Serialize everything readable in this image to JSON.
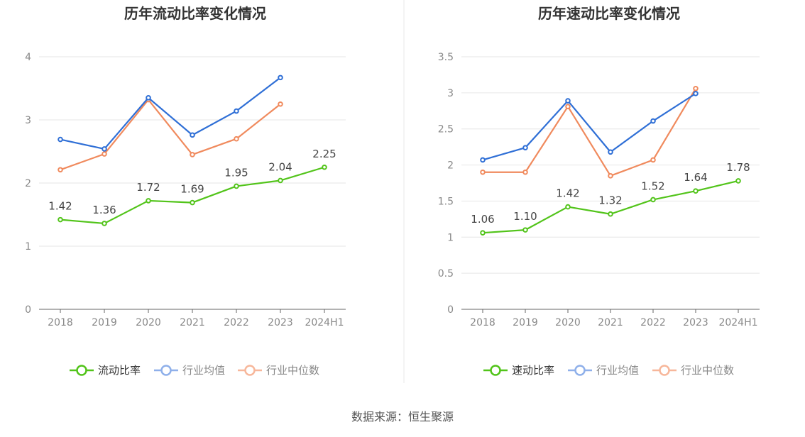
{
  "chart_data": [
    {
      "type": "line",
      "title": "历年流动比率变化情况",
      "categories": [
        "2018",
        "2019",
        "2020",
        "2021",
        "2022",
        "2023",
        "2024H1"
      ],
      "yticks": [
        "0",
        "1",
        "2",
        "3",
        "4"
      ],
      "ylim": [
        0,
        4
      ],
      "grid": true,
      "legend_position": "bottom",
      "series": [
        {
          "name": "流动比率",
          "color": "#52c41a",
          "values": [
            1.42,
            1.36,
            1.72,
            1.69,
            1.95,
            2.04,
            2.25
          ],
          "labels": [
            "1.42",
            "1.36",
            "1.72",
            "1.69",
            "1.95",
            "2.04",
            "2.25"
          ]
        },
        {
          "name": "行业均值",
          "color": "#2f6fd6",
          "values": [
            2.69,
            2.54,
            3.35,
            2.76,
            3.14,
            3.67,
            null
          ]
        },
        {
          "name": "行业中位数",
          "color": "#f08a5d",
          "values": [
            2.21,
            2.46,
            3.32,
            2.45,
            2.7,
            3.25,
            null
          ]
        }
      ]
    },
    {
      "type": "line",
      "title": "历年速动比率变化情况",
      "categories": [
        "2018",
        "2019",
        "2020",
        "2021",
        "2022",
        "2023",
        "2024H1"
      ],
      "yticks": [
        "0",
        "0.5",
        "1",
        "1.5",
        "2",
        "2.5",
        "3",
        "3.5"
      ],
      "ylim": [
        0,
        3.5
      ],
      "grid": true,
      "legend_position": "bottom",
      "series": [
        {
          "name": "速动比率",
          "color": "#52c41a",
          "values": [
            1.06,
            1.1,
            1.42,
            1.32,
            1.52,
            1.64,
            1.78
          ],
          "labels": [
            "1.06",
            "1.10",
            "1.42",
            "1.32",
            "1.52",
            "1.64",
            "1.78"
          ]
        },
        {
          "name": "行业均值",
          "color": "#2f6fd6",
          "values": [
            2.07,
            2.24,
            2.89,
            2.18,
            2.61,
            2.99,
            null
          ]
        },
        {
          "name": "行业中位数",
          "color": "#f08a5d",
          "values": [
            1.9,
            1.9,
            2.81,
            1.85,
            2.07,
            3.06,
            null
          ]
        }
      ]
    }
  ],
  "footer": {
    "source": "数据来源：恒生聚源"
  }
}
